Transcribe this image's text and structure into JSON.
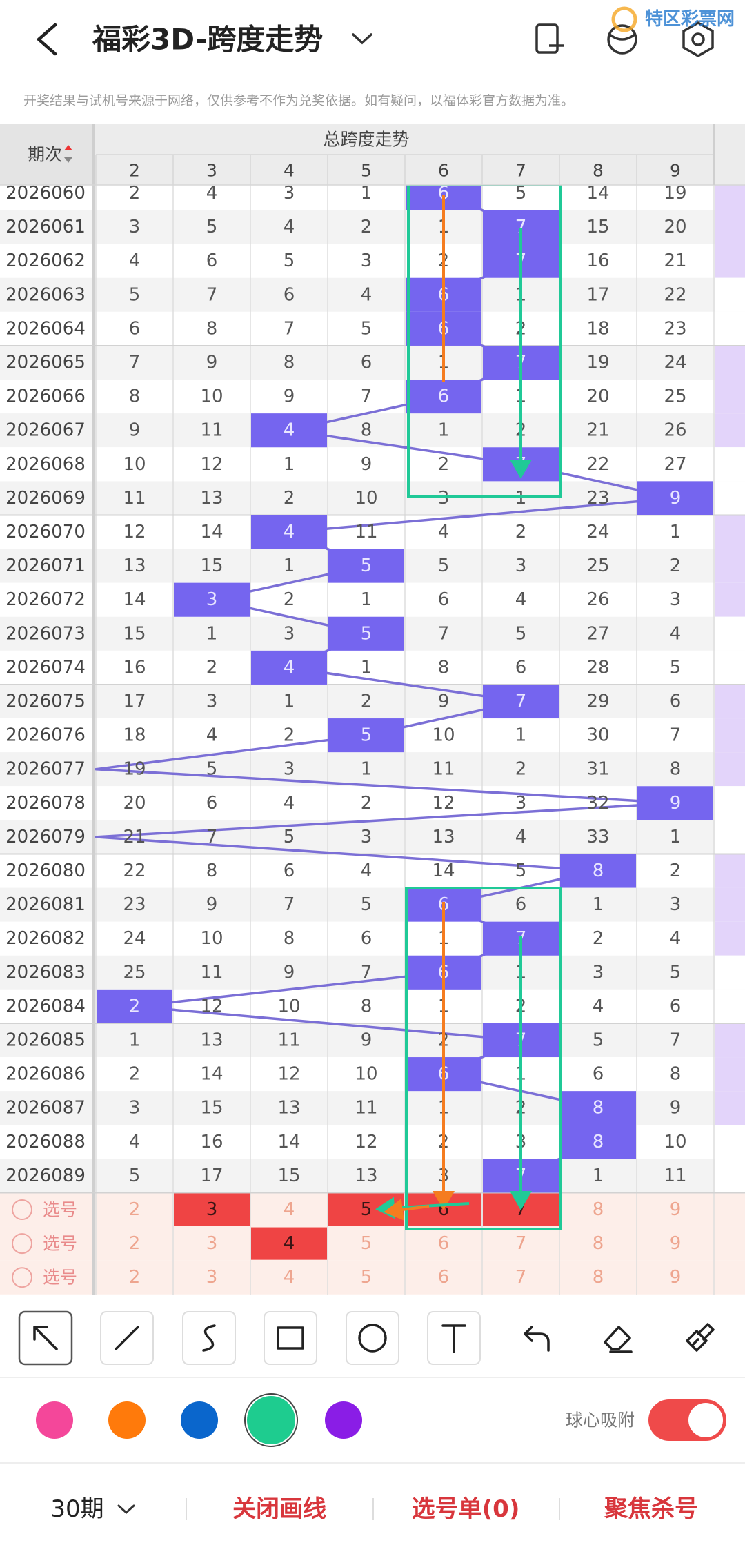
{
  "header": {
    "title": "福彩3D-跨度走势",
    "logo": "特区彩票网"
  },
  "notice": "开奖结果与试机号来源于网络，仅供参考不作为兑奖依据。如有疑问，以福体彩官方数据为准。",
  "table": {
    "period_header": "期次",
    "group_header": "总跨度走势",
    "columns": [
      2,
      3,
      4,
      5,
      6,
      7,
      8,
      9
    ],
    "rows": [
      {
        "period": "2026060",
        "values": [
          2,
          4,
          3,
          1,
          6,
          5,
          14,
          19
        ],
        "hit": 4
      },
      {
        "period": "2026061",
        "values": [
          3,
          5,
          4,
          2,
          1,
          7,
          15,
          20
        ],
        "hit": 5
      },
      {
        "period": "2026062",
        "values": [
          4,
          6,
          5,
          3,
          2,
          7,
          16,
          21
        ],
        "hit": 5
      },
      {
        "period": "2026063",
        "values": [
          5,
          7,
          6,
          4,
          6,
          1,
          17,
          22
        ],
        "hit": 4
      },
      {
        "period": "2026064",
        "values": [
          6,
          8,
          7,
          5,
          6,
          2,
          18,
          23
        ],
        "hit": 4
      },
      {
        "period": "2026065",
        "values": [
          7,
          9,
          8,
          6,
          1,
          7,
          19,
          24
        ],
        "hit": 5
      },
      {
        "period": "2026066",
        "values": [
          8,
          10,
          9,
          7,
          6,
          1,
          20,
          25
        ],
        "hit": 4
      },
      {
        "period": "2026067",
        "values": [
          9,
          11,
          4,
          8,
          1,
          2,
          21,
          26
        ],
        "hit": 2
      },
      {
        "period": "2026068",
        "values": [
          10,
          12,
          1,
          9,
          2,
          7,
          22,
          27
        ],
        "hit": 5
      },
      {
        "period": "2026069",
        "values": [
          11,
          13,
          2,
          10,
          3,
          1,
          23,
          9
        ],
        "hit": 7
      },
      {
        "period": "2026070",
        "values": [
          12,
          14,
          4,
          11,
          4,
          2,
          24,
          1
        ],
        "hit": 2
      },
      {
        "period": "2026071",
        "values": [
          13,
          15,
          1,
          5,
          5,
          3,
          25,
          2
        ],
        "hit": 3
      },
      {
        "period": "2026072",
        "values": [
          14,
          3,
          2,
          1,
          6,
          4,
          26,
          3
        ],
        "hit": 1
      },
      {
        "period": "2026073",
        "values": [
          15,
          1,
          3,
          5,
          7,
          5,
          27,
          4
        ],
        "hit": 3
      },
      {
        "period": "2026074",
        "values": [
          16,
          2,
          4,
          1,
          8,
          6,
          28,
          5
        ],
        "hit": 2
      },
      {
        "period": "2026075",
        "values": [
          17,
          3,
          1,
          2,
          9,
          7,
          29,
          6
        ],
        "hit": 5
      },
      {
        "period": "2026076",
        "values": [
          18,
          4,
          2,
          5,
          10,
          1,
          30,
          7
        ],
        "hit": 3
      },
      {
        "period": "2026077",
        "values": [
          19,
          5,
          3,
          1,
          11,
          2,
          31,
          8
        ],
        "hit": null
      },
      {
        "period": "2026078",
        "values": [
          20,
          6,
          4,
          2,
          12,
          3,
          32,
          9
        ],
        "hit": 7
      },
      {
        "period": "2026079",
        "values": [
          21,
          7,
          5,
          3,
          13,
          4,
          33,
          1
        ],
        "hit": null
      },
      {
        "period": "2026080",
        "values": [
          22,
          8,
          6,
          4,
          14,
          5,
          8,
          2
        ],
        "hit": 6
      },
      {
        "period": "2026081",
        "values": [
          23,
          9,
          7,
          5,
          6,
          6,
          1,
          3
        ],
        "hit": 4
      },
      {
        "period": "2026082",
        "values": [
          24,
          10,
          8,
          6,
          1,
          7,
          2,
          4
        ],
        "hit": 5
      },
      {
        "period": "2026083",
        "values": [
          25,
          11,
          9,
          7,
          6,
          1,
          3,
          5
        ],
        "hit": 4
      },
      {
        "period": "2026084",
        "values": [
          2,
          12,
          10,
          8,
          1,
          2,
          4,
          6
        ],
        "hit": 0
      },
      {
        "period": "2026085",
        "values": [
          1,
          13,
          11,
          9,
          2,
          7,
          5,
          7
        ],
        "hit": 5
      },
      {
        "period": "2026086",
        "values": [
          2,
          14,
          12,
          10,
          6,
          1,
          6,
          8
        ],
        "hit": 4
      },
      {
        "period": "2026087",
        "values": [
          3,
          15,
          13,
          11,
          1,
          2,
          8,
          9
        ],
        "hit": 6
      },
      {
        "period": "2026088",
        "values": [
          4,
          16,
          14,
          12,
          2,
          3,
          8,
          10
        ],
        "hit": 6
      },
      {
        "period": "2026089",
        "values": [
          5,
          17,
          15,
          13,
          3,
          7,
          1,
          11
        ],
        "hit": 5
      }
    ],
    "pick_rows": [
      {
        "label": "选号",
        "values": [
          2,
          3,
          4,
          5,
          6,
          7,
          8,
          9
        ],
        "selected": [
          1,
          3,
          4,
          5
        ]
      },
      {
        "label": "选号",
        "values": [
          2,
          3,
          4,
          5,
          6,
          7,
          8,
          9
        ],
        "selected": [
          2
        ]
      },
      {
        "label": "选号",
        "values": [
          2,
          3,
          4,
          5,
          6,
          7,
          8,
          9
        ],
        "selected": []
      }
    ]
  },
  "toolbar": {
    "colors": [
      "#f4479a",
      "#ff7a0b",
      "#0a66cc",
      "#1ecc8f",
      "#8a1de6"
    ],
    "selected_color": 3,
    "snap_label": "球心吸附",
    "snap_on": true
  },
  "bottom": {
    "period_select": "30期",
    "items": [
      "关闭画线",
      "选号单(0)",
      "聚焦杀号"
    ]
  }
}
